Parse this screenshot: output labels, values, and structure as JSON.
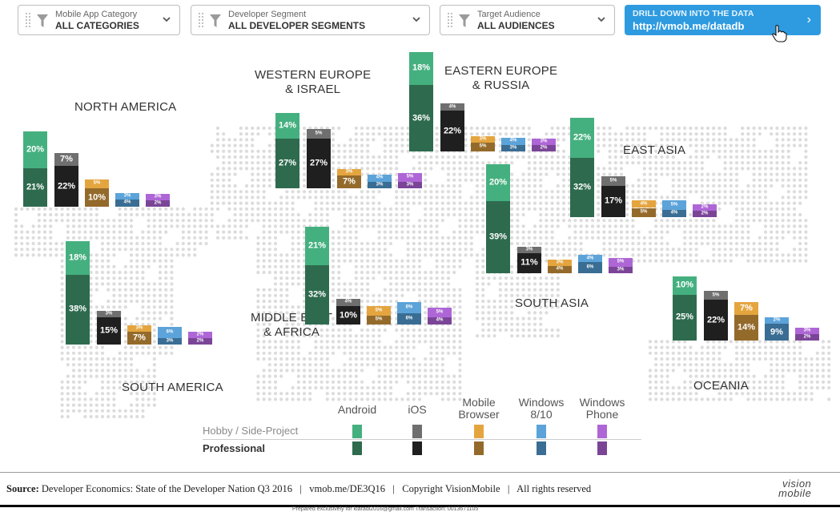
{
  "filters": [
    {
      "title": "Mobile App Category",
      "value": "ALL CATEGORIES"
    },
    {
      "title": "Developer Segment",
      "value": "ALL DEVELOPER SEGMENTS"
    },
    {
      "title": "Target Audience",
      "value": "ALL AUDIENCES"
    }
  ],
  "drill": {
    "title": "DRILL DOWN INTO THE DATA",
    "url": "http://vmob.me/datadb"
  },
  "legend": {
    "platforms": [
      "Android",
      "iOS",
      "Mobile Browser",
      "Windows 8/10",
      "Windows Phone"
    ],
    "rows": [
      "Hobby / Side-Project",
      "Professional"
    ]
  },
  "footer": {
    "source_label": "Source:",
    "text": "Developer Economics: State of the Developer Nation Q3 2016   |   vmob.me/DE3Q16   |   Copyright VisionMobile   |   All rights reserved",
    "logo_line1": "vision",
    "logo_line2": "mobile",
    "tiny": "Prepared exclusively for kiaradi2016@gmail.com  Transaction: 0013671105"
  },
  "chart_data": {
    "type": "bar",
    "stacked": true,
    "unit": "%",
    "platforms": [
      "Android",
      "iOS",
      "Mobile Browser",
      "Windows 8/10",
      "Windows Phone"
    ],
    "segments": [
      "Hobby / Side-Project",
      "Professional"
    ],
    "colors": {
      "Android": {
        "hobby": "#45b07f",
        "pro": "#2e6b4e"
      },
      "iOS": {
        "hobby": "#6f6f6f",
        "pro": "#1f1f1f"
      },
      "Mobile Browser": {
        "hobby": "#e4a53f",
        "pro": "#946a2b"
      },
      "Windows 8/10": {
        "hobby": "#5ba3d9",
        "pro": "#3a6d93"
      },
      "Windows Phone": {
        "hobby": "#ae66d6",
        "pro": "#7a4597"
      }
    },
    "regions": [
      {
        "name": "NORTH AMERICA",
        "hobby": [
          20,
          7,
          5,
          3,
          3
        ],
        "pro": [
          21,
          22,
          10,
          4,
          2
        ]
      },
      {
        "name": "SOUTH AMERICA",
        "hobby": [
          18,
          3,
          3,
          6,
          2
        ],
        "pro": [
          38,
          15,
          7,
          3,
          2
        ]
      },
      {
        "name": "WESTERN EUROPE\n& ISRAEL",
        "hobby": [
          14,
          5,
          3,
          4,
          5
        ],
        "pro": [
          27,
          27,
          7,
          3,
          3
        ]
      },
      {
        "name": "MIDDLE EAST\n& AFRICA",
        "hobby": [
          21,
          4,
          5,
          6,
          5
        ],
        "pro": [
          32,
          10,
          5,
          6,
          4
        ]
      },
      {
        "name": "EASTERN EUROPE\n& RUSSIA",
        "hobby": [
          18,
          4,
          3,
          4,
          3
        ],
        "pro": [
          36,
          22,
          5,
          3,
          2
        ]
      },
      {
        "name": "SOUTH ASIA",
        "hobby": [
          20,
          3,
          3,
          4,
          5
        ],
        "pro": [
          39,
          11,
          4,
          6,
          3
        ]
      },
      {
        "name": "EAST ASIA",
        "hobby": [
          22,
          5,
          4,
          5,
          2
        ],
        "pro": [
          32,
          17,
          5,
          4,
          2
        ]
      },
      {
        "name": "OCEANIA",
        "hobby": [
          10,
          5,
          7,
          2,
          3
        ],
        "pro": [
          25,
          22,
          14,
          9,
          2
        ]
      }
    ]
  }
}
